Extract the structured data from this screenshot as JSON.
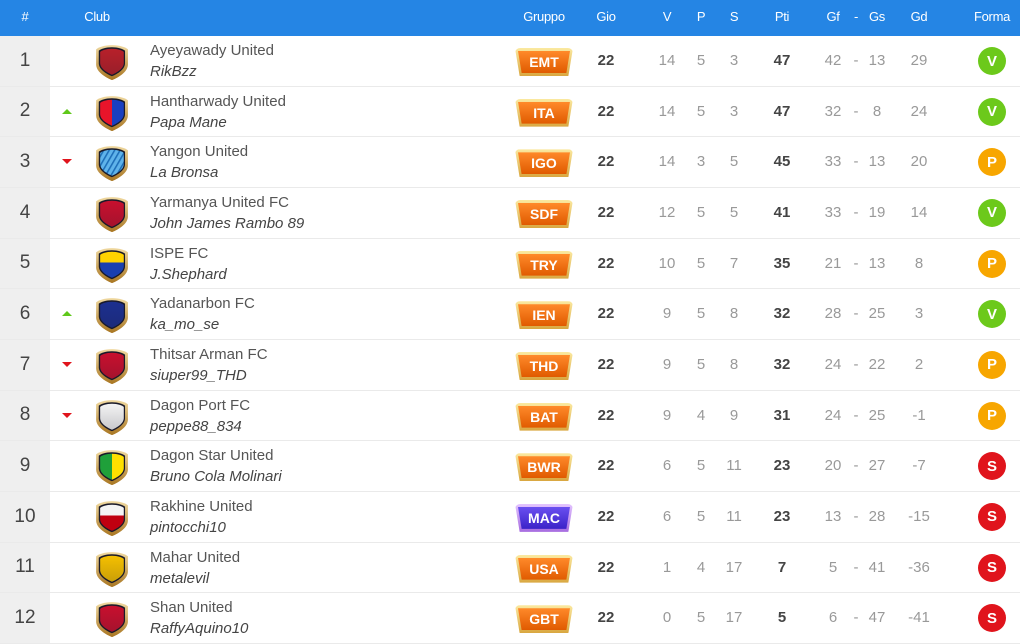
{
  "header": {
    "pos": "#",
    "club": "Club",
    "gruppo": "Gruppo",
    "gio": "Gio",
    "v": "V",
    "p": "P",
    "s": "S",
    "pti": "Pti",
    "gf": "Gf",
    "dash": "-",
    "gs": "Gs",
    "gd": "Gd",
    "forma": "Forma"
  },
  "colors": {
    "header_bg": "#2585e4",
    "forma_V": "#6cc91b",
    "forma_P": "#f7a600",
    "forma_S": "#e0141c"
  },
  "rows": [
    {
      "pos": "1",
      "trend": "",
      "club": "Ayeyawady United",
      "manager": "RikBzz",
      "shield": {
        "type": "solid",
        "colors": [
          "#b8202a"
        ]
      },
      "group": "EMT",
      "group_color": "orange",
      "gio": "22",
      "v": "14",
      "p": "5",
      "s": "3",
      "pti": "47",
      "gf": "42",
      "gs": "13",
      "gd": "29",
      "forma": "V"
    },
    {
      "pos": "2",
      "trend": "up",
      "club": "Hantharwady United",
      "manager": "Papa Mane",
      "shield": {
        "type": "vsplit",
        "colors": [
          "#e8142a",
          "#1a3fc0"
        ]
      },
      "group": "ITA",
      "group_color": "orange",
      "gio": "22",
      "v": "14",
      "p": "5",
      "s": "3",
      "pti": "47",
      "gf": "32",
      "gs": "8",
      "gd": "24",
      "forma": "V"
    },
    {
      "pos": "3",
      "trend": "down",
      "club": "Yangon United",
      "manager": "La Bronsa",
      "shield": {
        "type": "stripes",
        "colors": [
          "#5fb3ea",
          "#1e6fb8"
        ]
      },
      "group": "IGO",
      "group_color": "orange",
      "gio": "22",
      "v": "14",
      "p": "3",
      "s": "5",
      "pti": "45",
      "gf": "33",
      "gs": "13",
      "gd": "20",
      "forma": "P"
    },
    {
      "pos": "4",
      "trend": "",
      "club": "Yarmanya United FC",
      "manager": "John James Rambo 89",
      "shield": {
        "type": "solid",
        "colors": [
          "#c8102e"
        ]
      },
      "group": "SDF",
      "group_color": "orange",
      "gio": "22",
      "v": "12",
      "p": "5",
      "s": "5",
      "pti": "41",
      "gf": "33",
      "gs": "19",
      "gd": "14",
      "forma": "V"
    },
    {
      "pos": "5",
      "trend": "",
      "club": "ISPE FC",
      "manager": "J.Shephard",
      "shield": {
        "type": "hsplit",
        "colors": [
          "#ffd200",
          "#1a3fb0"
        ]
      },
      "group": "TRY",
      "group_color": "orange",
      "gio": "22",
      "v": "10",
      "p": "5",
      "s": "7",
      "pti": "35",
      "gf": "21",
      "gs": "13",
      "gd": "8",
      "forma": "P"
    },
    {
      "pos": "6",
      "trend": "up",
      "club": "Yadanarbon FC",
      "manager": "ka_mo_se",
      "shield": {
        "type": "solid",
        "colors": [
          "#1c2f8f"
        ]
      },
      "group": "IEN",
      "group_color": "orange",
      "gio": "22",
      "v": "9",
      "p": "5",
      "s": "8",
      "pti": "32",
      "gf": "28",
      "gs": "25",
      "gd": "3",
      "forma": "V"
    },
    {
      "pos": "7",
      "trend": "down",
      "club": "Thitsar Arman FC",
      "manager": "siuper99_THD",
      "shield": {
        "type": "solid",
        "colors": [
          "#c8102e"
        ]
      },
      "group": "THD",
      "group_color": "orange",
      "gio": "22",
      "v": "9",
      "p": "5",
      "s": "8",
      "pti": "32",
      "gf": "24",
      "gs": "22",
      "gd": "2",
      "forma": "P"
    },
    {
      "pos": "8",
      "trend": "down",
      "club": "Dagon Port FC",
      "manager": "peppe88_834",
      "shield": {
        "type": "solid",
        "colors": [
          "#f4f4f4"
        ]
      },
      "group": "BAT",
      "group_color": "orange",
      "gio": "22",
      "v": "9",
      "p": "4",
      "s": "9",
      "pti": "31",
      "gf": "24",
      "gs": "25",
      "gd": "-1",
      "forma": "P"
    },
    {
      "pos": "9",
      "trend": "",
      "club": "Dagon Star United",
      "manager": "Bruno Cola Molinari",
      "shield": {
        "type": "vsplit",
        "colors": [
          "#1fa03a",
          "#ffe000"
        ]
      },
      "group": "BWR",
      "group_color": "orange",
      "gio": "22",
      "v": "6",
      "p": "5",
      "s": "11",
      "pti": "23",
      "gf": "20",
      "gs": "27",
      "gd": "-7",
      "forma": "S"
    },
    {
      "pos": "10",
      "trend": "",
      "club": "Rakhine United",
      "manager": "pintocchi10",
      "shield": {
        "type": "hsplit",
        "colors": [
          "#f4f4f4",
          "#c00010"
        ]
      },
      "group": "MAC",
      "group_color": "purple",
      "gio": "22",
      "v": "6",
      "p": "5",
      "s": "11",
      "pti": "23",
      "gf": "13",
      "gs": "28",
      "gd": "-15",
      "forma": "S"
    },
    {
      "pos": "11",
      "trend": "",
      "club": "Mahar United",
      "manager": "metalevil",
      "shield": {
        "type": "solid",
        "colors": [
          "#f5c000"
        ]
      },
      "group": "USA",
      "group_color": "orange",
      "gio": "22",
      "v": "1",
      "p": "4",
      "s": "17",
      "pti": "7",
      "gf": "5",
      "gs": "41",
      "gd": "-36",
      "forma": "S"
    },
    {
      "pos": "12",
      "trend": "",
      "club": "Shan United",
      "manager": "RaffyAquino10",
      "shield": {
        "type": "solid",
        "colors": [
          "#c8102e"
        ]
      },
      "group": "GBT",
      "group_color": "orange",
      "gio": "22",
      "v": "0",
      "p": "5",
      "s": "17",
      "pti": "5",
      "gf": "6",
      "gs": "47",
      "gd": "-41",
      "forma": "S"
    }
  ]
}
